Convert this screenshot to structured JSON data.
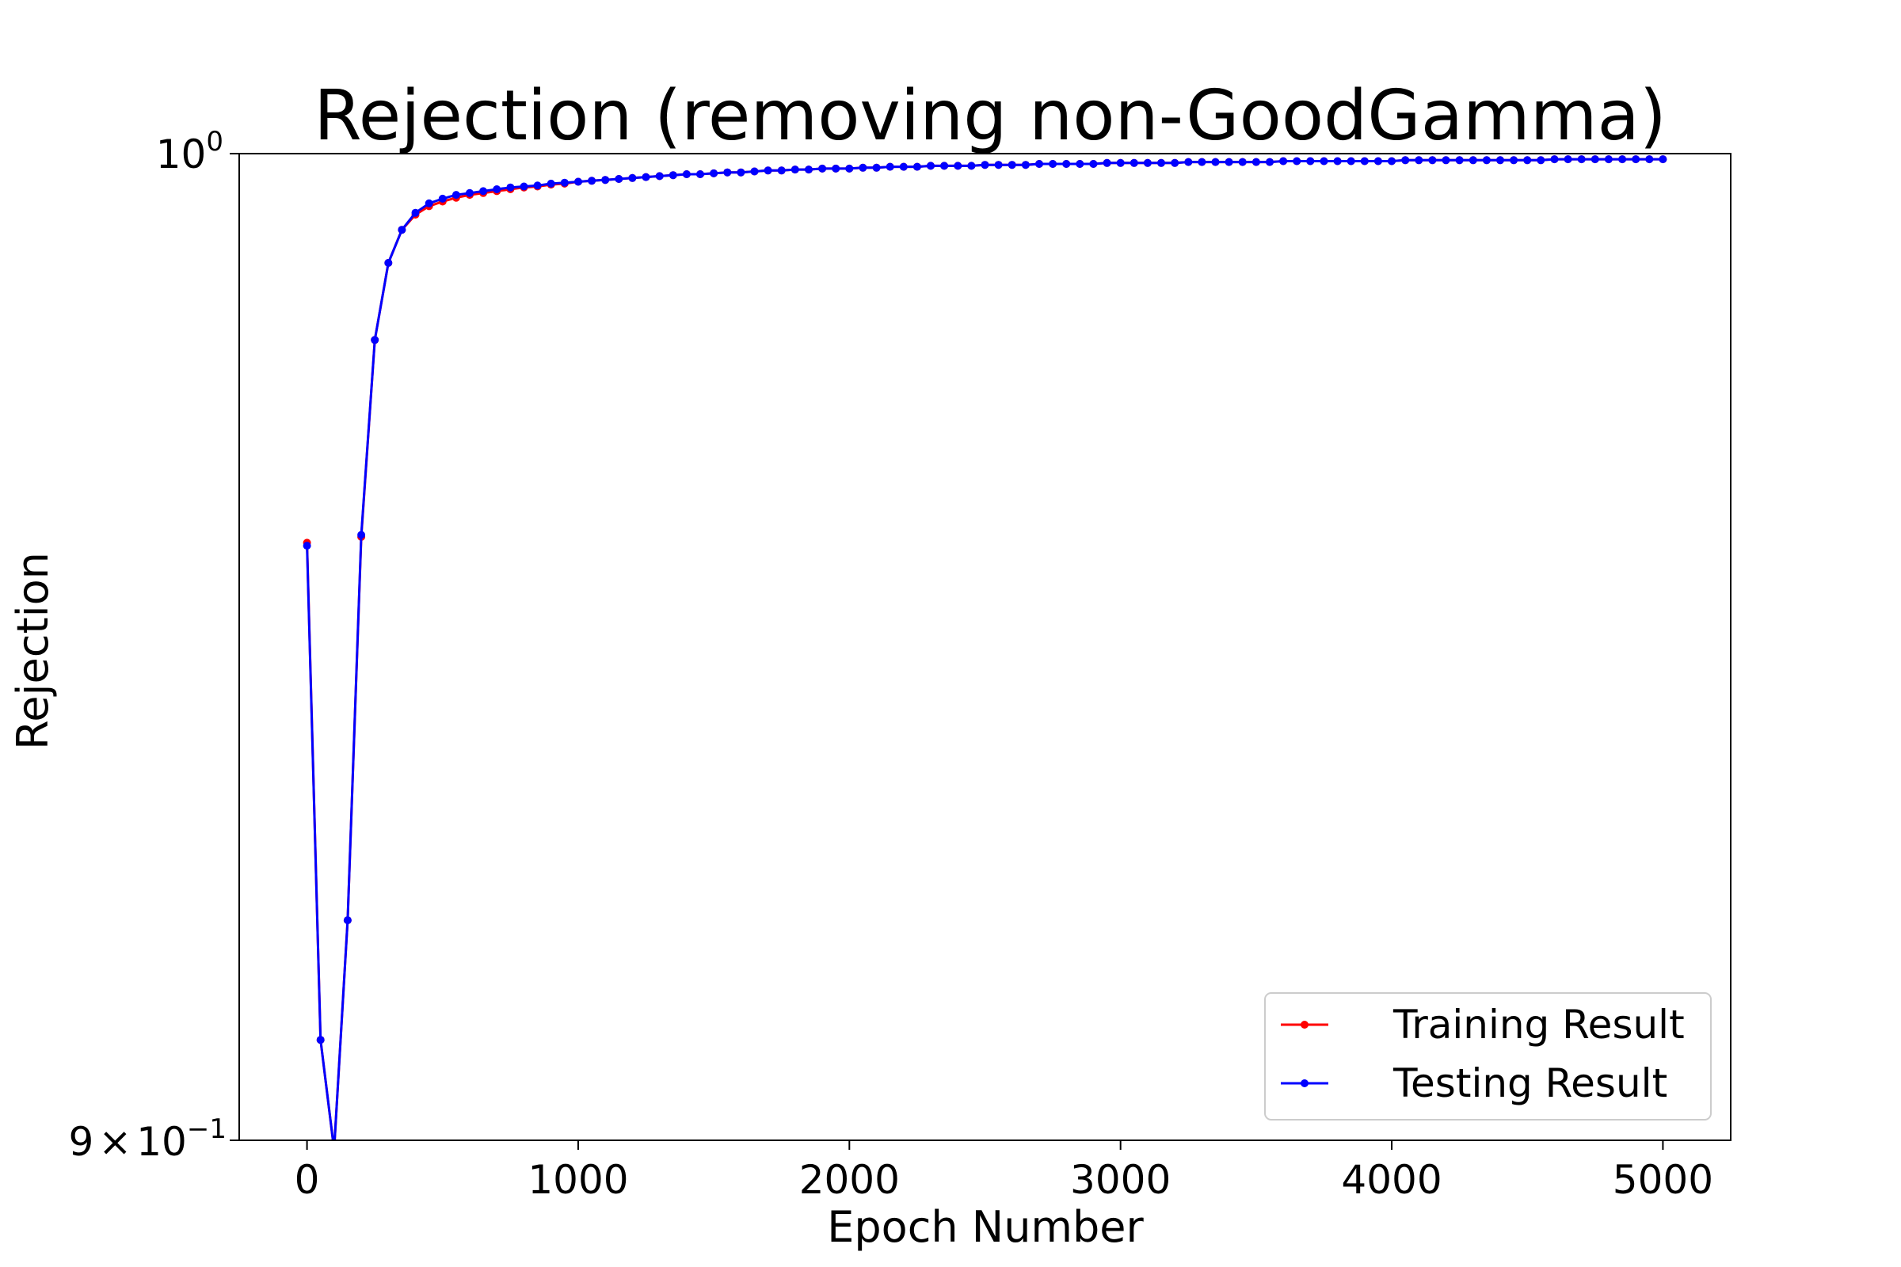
{
  "chart_data": {
    "type": "line",
    "title": "Rejection (removing non-GoodGamma)",
    "xlabel": "Epoch Number",
    "ylabel": "Rejection",
    "xlim": [
      -250,
      5250
    ],
    "ylim": [
      0.9,
      1.0
    ],
    "yscale": "log",
    "xticks": [
      0,
      1000,
      2000,
      3000,
      4000,
      5000
    ],
    "xtick_labels": [
      "0",
      "1000",
      "2000",
      "3000",
      "4000",
      "5000"
    ],
    "ytick_labels": {
      "top": {
        "base": "10",
        "exp": "0"
      },
      "bottom": {
        "coef": "9",
        "times": "×",
        "base": "10",
        "exp": "−1"
      }
    },
    "grid": false,
    "legend_position": "lower-right",
    "series": [
      {
        "name": "Training Result",
        "color": "#ff0000",
        "x": [
          0,
          50,
          100,
          150,
          200,
          250,
          300,
          350,
          400,
          450,
          500,
          550,
          600,
          650,
          700,
          750,
          800,
          850,
          900,
          950,
          1000,
          1050,
          1100,
          1150,
          1200,
          1250,
          1300,
          1350,
          1400,
          1450,
          1500,
          1550,
          1600,
          1650,
          1700,
          1750,
          1800,
          1850,
          1900,
          1950,
          2000,
          2050,
          2100,
          2150,
          2200,
          2250,
          2300,
          2350,
          2400,
          2450,
          2500,
          2550,
          2600,
          2650,
          2700,
          2750,
          2800,
          2850,
          2900,
          2950,
          3000,
          3050,
          3100,
          3150,
          3200,
          3250,
          3300,
          3350,
          3400,
          3450,
          3500,
          3550,
          3600,
          3650,
          3700,
          3750,
          3800,
          3850,
          3900,
          3950,
          4000,
          4050,
          4100,
          4150,
          4200,
          4250,
          4300,
          4350,
          4400,
          4450,
          4500,
          4550,
          4600,
          4650,
          4700,
          4750,
          4800,
          4850,
          4900,
          4950,
          5000
        ],
        "y": [
          0.9593,
          0.9097,
          0.8991,
          0.9214,
          0.9599,
          0.9803,
          0.9884,
          0.9919,
          0.9935,
          0.9944,
          0.9949,
          0.9953,
          0.9956,
          0.9958,
          0.996,
          0.9962,
          0.9964,
          0.9965,
          0.9967,
          0.9968,
          0.997,
          0.9971,
          0.9972,
          0.9973,
          0.9974,
          0.9975,
          0.9976,
          0.9977,
          0.9978,
          0.9978,
          0.9979,
          0.998,
          0.998,
          0.9981,
          0.9982,
          0.9982,
          0.9983,
          0.9983,
          0.9984,
          0.9984,
          0.9984,
          0.9985,
          0.9985,
          0.9986,
          0.9986,
          0.9986,
          0.9987,
          0.9987,
          0.9987,
          0.9987,
          0.9988,
          0.9988,
          0.9988,
          0.9988,
          0.9989,
          0.9989,
          0.9989,
          0.9989,
          0.9989,
          0.999,
          0.999,
          0.999,
          0.999,
          0.999,
          0.999,
          0.9991,
          0.9991,
          0.9991,
          0.9991,
          0.9991,
          0.9991,
          0.9991,
          0.9992,
          0.9992,
          0.9992,
          0.9992,
          0.9992,
          0.9992,
          0.9992,
          0.9992,
          0.9992,
          0.9993,
          0.9993,
          0.9993,
          0.9993,
          0.9993,
          0.9993,
          0.9993,
          0.9993,
          0.9993,
          0.9993,
          0.9993,
          0.9994,
          0.9994,
          0.9994,
          0.9994,
          0.9994,
          0.9994,
          0.9994,
          0.9994,
          0.9994
        ]
      },
      {
        "name": "Testing Result",
        "color": "#0000ff",
        "x": [
          0,
          50,
          100,
          150,
          200,
          250,
          300,
          350,
          400,
          450,
          500,
          550,
          600,
          650,
          700,
          750,
          800,
          850,
          900,
          950,
          1000,
          1050,
          1100,
          1150,
          1200,
          1250,
          1300,
          1350,
          1400,
          1450,
          1500,
          1550,
          1600,
          1650,
          1700,
          1750,
          1800,
          1850,
          1900,
          1950,
          2000,
          2050,
          2100,
          2150,
          2200,
          2250,
          2300,
          2350,
          2400,
          2450,
          2500,
          2550,
          2600,
          2650,
          2700,
          2750,
          2800,
          2850,
          2900,
          2950,
          3000,
          3050,
          3100,
          3150,
          3200,
          3250,
          3300,
          3350,
          3400,
          3450,
          3500,
          3550,
          3600,
          3650,
          3700,
          3750,
          3800,
          3850,
          3900,
          3950,
          4000,
          4050,
          4100,
          4150,
          4200,
          4250,
          4300,
          4350,
          4400,
          4450,
          4500,
          4550,
          4600,
          4650,
          4700,
          4750,
          4800,
          4850,
          4900,
          4950,
          5000
        ],
        "y": [
          0.959,
          0.9097,
          0.8991,
          0.9214,
          0.9601,
          0.9803,
          0.9884,
          0.9919,
          0.9937,
          0.9947,
          0.9952,
          0.9956,
          0.9958,
          0.996,
          0.9962,
          0.9964,
          0.9965,
          0.9966,
          0.9968,
          0.9969,
          0.997,
          0.9971,
          0.9972,
          0.9973,
          0.9974,
          0.9975,
          0.9976,
          0.9977,
          0.9978,
          0.9978,
          0.9979,
          0.998,
          0.998,
          0.9981,
          0.9982,
          0.9982,
          0.9983,
          0.9983,
          0.9984,
          0.9984,
          0.9984,
          0.9985,
          0.9985,
          0.9986,
          0.9986,
          0.9986,
          0.9987,
          0.9987,
          0.9987,
          0.9987,
          0.9988,
          0.9988,
          0.9988,
          0.9988,
          0.9989,
          0.9989,
          0.9989,
          0.9989,
          0.9989,
          0.999,
          0.999,
          0.999,
          0.999,
          0.999,
          0.999,
          0.9991,
          0.9991,
          0.9991,
          0.9991,
          0.9991,
          0.9991,
          0.9991,
          0.9992,
          0.9992,
          0.9992,
          0.9992,
          0.9992,
          0.9992,
          0.9992,
          0.9992,
          0.9992,
          0.9993,
          0.9993,
          0.9993,
          0.9993,
          0.9993,
          0.9993,
          0.9993,
          0.9993,
          0.9993,
          0.9993,
          0.9993,
          0.9994,
          0.9994,
          0.9994,
          0.9994,
          0.9994,
          0.9994,
          0.9994,
          0.9994,
          0.9994
        ]
      }
    ]
  }
}
